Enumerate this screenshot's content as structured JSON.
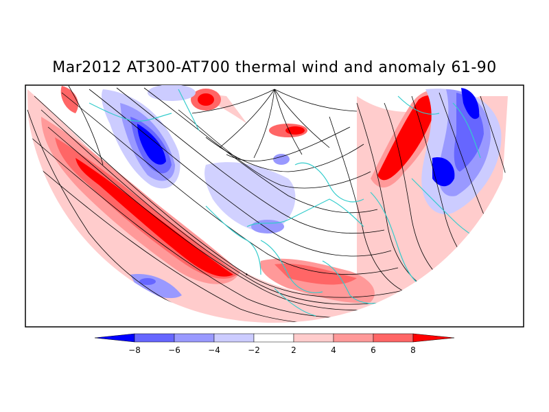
{
  "title": "Mar2012 AT300-AT700 thermal wind and anomaly 61-90",
  "colorbar": {
    "labels": [
      "-8",
      "-6",
      "-4",
      "-2",
      "2",
      "4",
      "6",
      "8"
    ],
    "colors": [
      "#0000ff",
      "#6666ff",
      "#9999ff",
      "#ccccff",
      "#ffffff",
      "#ffcccc",
      "#ff9999",
      "#ff6666",
      "#ff0000"
    ]
  },
  "map": {
    "projection": "polar-stereographic-northern-hemisphere",
    "coastline_color": "#33cccc",
    "streamline_color": "#000000"
  }
}
